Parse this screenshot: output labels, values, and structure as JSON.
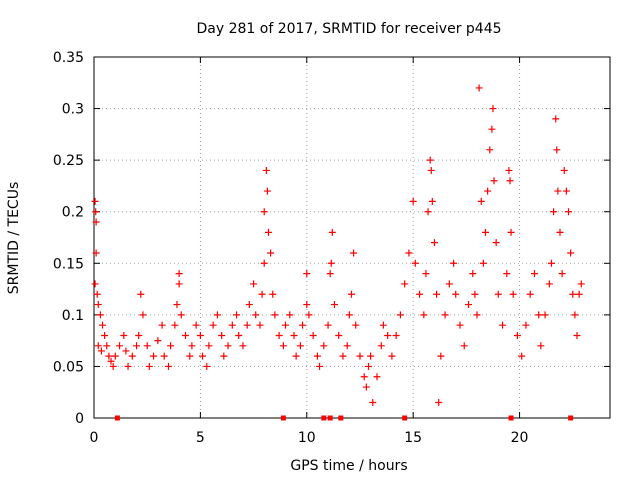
{
  "chart_data": {
    "type": "scatter",
    "title": "Day 281 of 2017, SRMTID for receiver p445",
    "xlabel": "GPS time / hours",
    "ylabel": "SRMTID / TECUs",
    "xlim": [
      0,
      24.25
    ],
    "ylim": [
      0,
      0.35
    ],
    "x_ticks": [
      0,
      5,
      10,
      15,
      20
    ],
    "x_tick_labels": [
      "0",
      "5",
      "10",
      "15",
      "20"
    ],
    "y_ticks": [
      0,
      0.05,
      0.1,
      0.15,
      0.2,
      0.25,
      0.3,
      0.35
    ],
    "y_tick_labels": [
      "0",
      "0.05",
      "0.1",
      "0.15",
      "0.2",
      "0.25",
      "0.3",
      "0.35"
    ],
    "grid": true,
    "marker": "+",
    "series": [
      {
        "name": "SRMTID",
        "color": "#ff0000",
        "points": [
          [
            0.05,
            0.21
          ],
          [
            0.08,
            0.2
          ],
          [
            0.1,
            0.19
          ],
          [
            0.1,
            0.16
          ],
          [
            0.05,
            0.13
          ],
          [
            0.15,
            0.12
          ],
          [
            0.2,
            0.11
          ],
          [
            0.3,
            0.1
          ],
          [
            0.4,
            0.09
          ],
          [
            0.5,
            0.08
          ],
          [
            0.6,
            0.07
          ],
          [
            0.2,
            0.07
          ],
          [
            0.35,
            0.065
          ],
          [
            0.7,
            0.06
          ],
          [
            0.8,
            0.055
          ],
          [
            0.9,
            0.05
          ],
          [
            1.0,
            0.06
          ],
          [
            1.2,
            0.07
          ],
          [
            1.4,
            0.08
          ],
          [
            1.5,
            0.065
          ],
          [
            1.6,
            0.05
          ],
          [
            1.8,
            0.06
          ],
          [
            2.0,
            0.07
          ],
          [
            2.1,
            0.08
          ],
          [
            2.2,
            0.12
          ],
          [
            2.3,
            0.1
          ],
          [
            2.5,
            0.07
          ],
          [
            2.6,
            0.05
          ],
          [
            2.8,
            0.06
          ],
          [
            3.0,
            0.075
          ],
          [
            3.2,
            0.09
          ],
          [
            3.3,
            0.06
          ],
          [
            3.5,
            0.05
          ],
          [
            3.6,
            0.07
          ],
          [
            3.8,
            0.09
          ],
          [
            3.9,
            0.11
          ],
          [
            4.0,
            0.13
          ],
          [
            4.0,
            0.14
          ],
          [
            4.1,
            0.1
          ],
          [
            4.3,
            0.08
          ],
          [
            4.5,
            0.06
          ],
          [
            4.6,
            0.07
          ],
          [
            4.8,
            0.09
          ],
          [
            5.0,
            0.08
          ],
          [
            5.1,
            0.06
          ],
          [
            5.3,
            0.05
          ],
          [
            5.4,
            0.07
          ],
          [
            5.6,
            0.09
          ],
          [
            5.8,
            0.1
          ],
          [
            6.0,
            0.08
          ],
          [
            6.1,
            0.06
          ],
          [
            6.3,
            0.07
          ],
          [
            6.5,
            0.09
          ],
          [
            6.7,
            0.1
          ],
          [
            6.8,
            0.08
          ],
          [
            7.0,
            0.07
          ],
          [
            7.2,
            0.09
          ],
          [
            7.3,
            0.11
          ],
          [
            7.5,
            0.13
          ],
          [
            7.6,
            0.1
          ],
          [
            7.8,
            0.09
          ],
          [
            7.9,
            0.12
          ],
          [
            8.0,
            0.15
          ],
          [
            8.0,
            0.2
          ],
          [
            8.1,
            0.24
          ],
          [
            8.15,
            0.22
          ],
          [
            8.2,
            0.18
          ],
          [
            8.3,
            0.16
          ],
          [
            8.4,
            0.12
          ],
          [
            8.5,
            0.1
          ],
          [
            8.7,
            0.08
          ],
          [
            8.9,
            0.07
          ],
          [
            9.0,
            0.09
          ],
          [
            9.2,
            0.1
          ],
          [
            9.4,
            0.08
          ],
          [
            9.5,
            0.06
          ],
          [
            9.7,
            0.07
          ],
          [
            9.8,
            0.09
          ],
          [
            10.0,
            0.11
          ],
          [
            10.0,
            0.14
          ],
          [
            10.1,
            0.1
          ],
          [
            10.3,
            0.08
          ],
          [
            10.5,
            0.06
          ],
          [
            10.6,
            0.05
          ],
          [
            10.8,
            0.07
          ],
          [
            11.0,
            0.09
          ],
          [
            11.1,
            0.14
          ],
          [
            11.15,
            0.15
          ],
          [
            11.2,
            0.18
          ],
          [
            11.3,
            0.11
          ],
          [
            11.5,
            0.08
          ],
          [
            11.7,
            0.06
          ],
          [
            11.9,
            0.07
          ],
          [
            12.0,
            0.1
          ],
          [
            12.1,
            0.12
          ],
          [
            12.2,
            0.16
          ],
          [
            12.3,
            0.09
          ],
          [
            12.5,
            0.06
          ],
          [
            12.7,
            0.04
          ],
          [
            12.8,
            0.03
          ],
          [
            12.9,
            0.05
          ],
          [
            13.0,
            0.06
          ],
          [
            13.1,
            0.015
          ],
          [
            13.3,
            0.04
          ],
          [
            13.5,
            0.07
          ],
          [
            13.6,
            0.09
          ],
          [
            13.8,
            0.08
          ],
          [
            14.0,
            0.06
          ],
          [
            14.2,
            0.08
          ],
          [
            14.4,
            0.1
          ],
          [
            14.6,
            0.13
          ],
          [
            14.8,
            0.16
          ],
          [
            15.0,
            0.21
          ],
          [
            15.1,
            0.15
          ],
          [
            15.3,
            0.12
          ],
          [
            15.5,
            0.1
          ],
          [
            15.6,
            0.14
          ],
          [
            15.7,
            0.2
          ],
          [
            15.8,
            0.25
          ],
          [
            15.85,
            0.24
          ],
          [
            15.9,
            0.21
          ],
          [
            16.0,
            0.17
          ],
          [
            16.1,
            0.12
          ],
          [
            16.2,
            0.015
          ],
          [
            16.3,
            0.06
          ],
          [
            16.5,
            0.1
          ],
          [
            16.7,
            0.13
          ],
          [
            16.9,
            0.15
          ],
          [
            17.0,
            0.12
          ],
          [
            17.2,
            0.09
          ],
          [
            17.4,
            0.07
          ],
          [
            17.6,
            0.11
          ],
          [
            17.8,
            0.14
          ],
          [
            17.9,
            0.12
          ],
          [
            18.0,
            0.1
          ],
          [
            18.1,
            0.32
          ],
          [
            18.2,
            0.21
          ],
          [
            18.3,
            0.15
          ],
          [
            18.4,
            0.18
          ],
          [
            18.5,
            0.22
          ],
          [
            18.6,
            0.26
          ],
          [
            18.7,
            0.28
          ],
          [
            18.75,
            0.3
          ],
          [
            18.8,
            0.23
          ],
          [
            18.9,
            0.17
          ],
          [
            19.0,
            0.12
          ],
          [
            19.2,
            0.09
          ],
          [
            19.4,
            0.14
          ],
          [
            19.5,
            0.24
          ],
          [
            19.55,
            0.23
          ],
          [
            19.6,
            0.18
          ],
          [
            19.7,
            0.12
          ],
          [
            19.9,
            0.08
          ],
          [
            20.1,
            0.06
          ],
          [
            20.3,
            0.09
          ],
          [
            20.5,
            0.12
          ],
          [
            20.7,
            0.14
          ],
          [
            20.9,
            0.1
          ],
          [
            21.0,
            0.07
          ],
          [
            21.2,
            0.1
          ],
          [
            21.4,
            0.13
          ],
          [
            21.5,
            0.15
          ],
          [
            21.6,
            0.2
          ],
          [
            21.7,
            0.29
          ],
          [
            21.75,
            0.26
          ],
          [
            21.8,
            0.22
          ],
          [
            21.9,
            0.18
          ],
          [
            22.0,
            0.14
          ],
          [
            22.1,
            0.24
          ],
          [
            22.2,
            0.22
          ],
          [
            22.3,
            0.2
          ],
          [
            22.4,
            0.16
          ],
          [
            22.5,
            0.12
          ],
          [
            22.6,
            0.1
          ],
          [
            22.7,
            0.08
          ],
          [
            22.8,
            0.12
          ],
          [
            22.9,
            0.13
          ]
        ]
      }
    ],
    "baseline_markers_x": [
      1.1,
      8.9,
      10.8,
      11.1,
      11.6,
      14.6,
      19.6,
      22.4
    ]
  }
}
